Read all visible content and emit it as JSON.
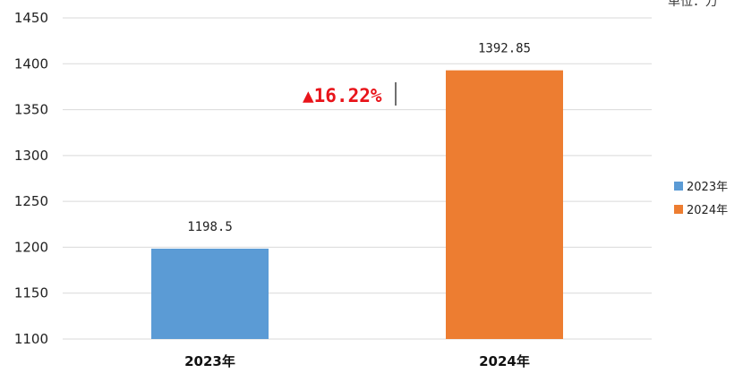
{
  "chart_data": {
    "type": "bar",
    "categories": [
      "2023年",
      "2024年"
    ],
    "values": [
      1198.5,
      1392.85
    ],
    "value_labels": [
      "1198.5",
      "1392.85"
    ],
    "colors": [
      "#5b9bd5",
      "#ed7d31"
    ],
    "ylim": [
      1100,
      1450
    ],
    "yticks": [
      1100,
      1150,
      1200,
      1250,
      1300,
      1350,
      1400,
      1450
    ],
    "grid": true,
    "legend": {
      "position": "right",
      "entries": [
        "2023年",
        "2024年"
      ]
    },
    "annotation": "▲16.22%",
    "unit_label": "单位：万"
  }
}
